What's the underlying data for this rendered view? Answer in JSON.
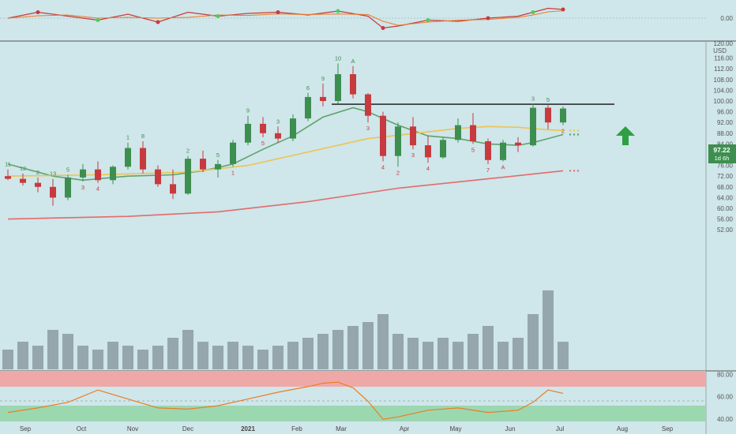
{
  "colors": {
    "background": "#cfe6ea",
    "up": "#3d8f50",
    "down": "#c73a3e",
    "ma_short": "#5fa36b",
    "ma_mid": "#ecc452",
    "ma_long": "#e36b6b",
    "volume": "#8f9ea6",
    "rsi_line": "#ee7c23",
    "upper_band": "#efa8a8",
    "lower_band": "#9bd8b0",
    "resistance": "#111111",
    "arrow": "#2ea043",
    "price_tag": "#3d8f50"
  },
  "main_axis": {
    "unit": "USD",
    "top_label": "120.00",
    "ticks": [
      "116.00",
      "112.00",
      "108.00",
      "104.00",
      "100.00",
      "96.00",
      "92.00",
      "88.00",
      "84.00",
      "80.00",
      "76.00",
      "72.00",
      "68.00",
      "64.00",
      "60.00",
      "56.00",
      "52.00"
    ]
  },
  "price_tag": {
    "price": "97.22",
    "countdown": "1d 6h"
  },
  "top_panel": {
    "tick": "0.00"
  },
  "rsi_panel": {
    "ticks": [
      "80.00",
      "60.00",
      "40.00"
    ]
  },
  "x_axis": {
    "labels": [
      "Sep",
      "Oct",
      "Nov",
      "Dec",
      "2021",
      "Feb",
      "Mar",
      "Apr",
      "May",
      "Jun",
      "Jul",
      "Aug",
      "Sep"
    ]
  },
  "chart_data": {
    "type": "candlestick",
    "y_range": [
      50,
      120
    ],
    "resistance_level": 98.8,
    "weekly_candles": [
      {
        "o": 72.0,
        "h": 74.5,
        "l": 70.5,
        "c": 71.0
      },
      {
        "o": 71.0,
        "h": 73.0,
        "l": 68.5,
        "c": 69.5
      },
      {
        "o": 69.5,
        "h": 71.5,
        "l": 66.0,
        "c": 68.0
      },
      {
        "o": 68.0,
        "h": 71.0,
        "l": 61.0,
        "c": 64.0
      },
      {
        "o": 64.0,
        "h": 72.5,
        "l": 63.0,
        "c": 71.5
      },
      {
        "o": 71.5,
        "h": 76.5,
        "l": 70.0,
        "c": 74.5
      },
      {
        "o": 74.5,
        "h": 77.5,
        "l": 69.5,
        "c": 70.5
      },
      {
        "o": 70.5,
        "h": 76.0,
        "l": 69.0,
        "c": 75.5
      },
      {
        "o": 75.5,
        "h": 84.5,
        "l": 74.5,
        "c": 82.5
      },
      {
        "o": 82.5,
        "h": 85.0,
        "l": 73.0,
        "c": 74.5
      },
      {
        "o": 74.5,
        "h": 76.0,
        "l": 68.0,
        "c": 69.0
      },
      {
        "o": 69.0,
        "h": 74.5,
        "l": 63.5,
        "c": 65.5
      },
      {
        "o": 65.5,
        "h": 79.5,
        "l": 65.0,
        "c": 78.5
      },
      {
        "o": 78.5,
        "h": 81.5,
        "l": 73.5,
        "c": 74.5
      },
      {
        "o": 74.5,
        "h": 78.0,
        "l": 71.5,
        "c": 76.5
      },
      {
        "o": 76.5,
        "h": 85.5,
        "l": 75.5,
        "c": 84.5
      },
      {
        "o": 84.5,
        "h": 94.5,
        "l": 83.5,
        "c": 91.5
      },
      {
        "o": 91.5,
        "h": 94.0,
        "l": 86.5,
        "c": 88.0
      },
      {
        "o": 88.0,
        "h": 90.5,
        "l": 84.5,
        "c": 86.0
      },
      {
        "o": 86.0,
        "h": 95.0,
        "l": 85.0,
        "c": 93.5
      },
      {
        "o": 93.5,
        "h": 103.0,
        "l": 92.5,
        "c": 101.5
      },
      {
        "o": 101.5,
        "h": 106.5,
        "l": 98.0,
        "c": 100.0
      },
      {
        "o": 100.0,
        "h": 114.0,
        "l": 99.0,
        "c": 110.0
      },
      {
        "o": 110.0,
        "h": 113.0,
        "l": 101.0,
        "c": 102.5
      },
      {
        "o": 102.5,
        "h": 103.0,
        "l": 92.0,
        "c": 94.5
      },
      {
        "o": 94.5,
        "h": 96.0,
        "l": 77.5,
        "c": 79.5
      },
      {
        "o": 79.5,
        "h": 92.0,
        "l": 75.5,
        "c": 90.5
      },
      {
        "o": 90.5,
        "h": 94.0,
        "l": 82.0,
        "c": 83.5
      },
      {
        "o": 83.5,
        "h": 87.0,
        "l": 77.0,
        "c": 79.0
      },
      {
        "o": 79.0,
        "h": 86.5,
        "l": 78.5,
        "c": 85.5
      },
      {
        "o": 85.5,
        "h": 93.5,
        "l": 84.5,
        "c": 91.0
      },
      {
        "o": 91.0,
        "h": 95.5,
        "l": 84.0,
        "c": 85.0
      },
      {
        "o": 85.0,
        "h": 86.0,
        "l": 76.5,
        "c": 78.0
      },
      {
        "o": 78.0,
        "h": 85.5,
        "l": 77.5,
        "c": 84.5
      },
      {
        "o": 84.5,
        "h": 86.5,
        "l": 81.0,
        "c": 83.5
      },
      {
        "o": 83.5,
        "h": 99.0,
        "l": 83.0,
        "c": 97.5
      },
      {
        "o": 97.5,
        "h": 98.5,
        "l": 89.5,
        "c": 92.0
      },
      {
        "o": 92.0,
        "h": 98.0,
        "l": 91.0,
        "c": 97.2
      }
    ],
    "moving_averages": [
      {
        "name": "short",
        "color": "#5fa36b",
        "points": [
          [
            0,
            76.5
          ],
          [
            3,
            72
          ],
          [
            5,
            70.5
          ],
          [
            8,
            72
          ],
          [
            11,
            72.5
          ],
          [
            13,
            74
          ],
          [
            15,
            76.5
          ],
          [
            17,
            82
          ],
          [
            19,
            87
          ],
          [
            21,
            94
          ],
          [
            23,
            97.5
          ],
          [
            24,
            96
          ],
          [
            26,
            91
          ],
          [
            28,
            87
          ],
          [
            30,
            86
          ],
          [
            32,
            84
          ],
          [
            34,
            83.5
          ],
          [
            35,
            84.5
          ],
          [
            36,
            86
          ],
          [
            37,
            87.5
          ]
        ]
      },
      {
        "name": "mid",
        "color": "#ecc452",
        "points": [
          [
            0,
            72
          ],
          [
            6,
            72.5
          ],
          [
            12,
            73.5
          ],
          [
            16,
            76
          ],
          [
            20,
            81
          ],
          [
            24,
            86
          ],
          [
            28,
            88.5
          ],
          [
            30,
            89.8
          ],
          [
            32,
            90.5
          ],
          [
            34,
            90.2
          ],
          [
            36,
            89.3
          ],
          [
            37,
            89
          ]
        ]
      },
      {
        "name": "long",
        "color": "#e36b6b",
        "points": [
          [
            0,
            56
          ],
          [
            8,
            57
          ],
          [
            14,
            58.7
          ],
          [
            20,
            62.5
          ],
          [
            26,
            67.5
          ],
          [
            32,
            71
          ],
          [
            37,
            74
          ]
        ]
      }
    ],
    "volume_relative": [
      0.25,
      0.35,
      0.3,
      0.5,
      0.45,
      0.3,
      0.25,
      0.35,
      0.3,
      0.25,
      0.3,
      0.4,
      0.5,
      0.35,
      0.3,
      0.35,
      0.3,
      0.25,
      0.3,
      0.35,
      0.4,
      0.45,
      0.5,
      0.55,
      0.6,
      0.7,
      0.45,
      0.4,
      0.35,
      0.4,
      0.35,
      0.45,
      0.55,
      0.35,
      0.4,
      0.7,
      1.0,
      0.35
    ],
    "rsi_levels": [
      80,
      60,
      40
    ],
    "rsi_points": [
      [
        0,
        46
      ],
      [
        2,
        50
      ],
      [
        4,
        55
      ],
      [
        6,
        66
      ],
      [
        8,
        58
      ],
      [
        10,
        50
      ],
      [
        12,
        49
      ],
      [
        14,
        52
      ],
      [
        16,
        58
      ],
      [
        18,
        64
      ],
      [
        20,
        69
      ],
      [
        21,
        72
      ],
      [
        22,
        73
      ],
      [
        23,
        68
      ],
      [
        24,
        56
      ],
      [
        25,
        40
      ],
      [
        26,
        42
      ],
      [
        28,
        48
      ],
      [
        30,
        50
      ],
      [
        32,
        46
      ],
      [
        34,
        48
      ],
      [
        35,
        55
      ],
      [
        36,
        66
      ],
      [
        37,
        63
      ]
    ],
    "oscillator_points": [
      [
        0,
        0
      ],
      [
        2,
        1.5
      ],
      [
        4,
        0.5
      ],
      [
        6,
        -0.5
      ],
      [
        8,
        1
      ],
      [
        10,
        -1
      ],
      [
        12,
        1.5
      ],
      [
        14,
        0.5
      ],
      [
        16,
        1.2
      ],
      [
        18,
        1.5
      ],
      [
        20,
        0.8
      ],
      [
        22,
        1.8
      ],
      [
        24,
        0.5
      ],
      [
        25,
        -2.5
      ],
      [
        26,
        -2
      ],
      [
        28,
        -0.5
      ],
      [
        30,
        -0.8
      ],
      [
        32,
        0
      ],
      [
        34,
        0.5
      ],
      [
        35,
        1.5
      ],
      [
        36,
        2.5
      ],
      [
        37,
        2.2
      ]
    ],
    "count_labels": [
      {
        "i": 0,
        "t": "11",
        "c": "g"
      },
      {
        "i": 1,
        "t": "12",
        "c": "g"
      },
      {
        "i": 2,
        "t": "2",
        "c": "g"
      },
      {
        "i": 3,
        "t": "13",
        "c": "g"
      },
      {
        "i": 4,
        "t": "5",
        "c": "g"
      },
      {
        "i": 5,
        "t": "3",
        "c": "r"
      },
      {
        "i": 6,
        "t": "4",
        "c": "r"
      },
      {
        "i": 8,
        "t": "1",
        "c": "g"
      },
      {
        "i": 9,
        "t": "8",
        "c": "g"
      },
      {
        "i": 12,
        "t": "2",
        "c": "g"
      },
      {
        "i": 14,
        "t": "5",
        "c": "g"
      },
      {
        "i": 15,
        "t": "1",
        "c": "r"
      },
      {
        "i": 16,
        "t": "9",
        "c": "g"
      },
      {
        "i": 17,
        "t": "5",
        "c": "r"
      },
      {
        "i": 18,
        "t": "3",
        "c": "g"
      },
      {
        "i": 20,
        "t": "6",
        "c": "g"
      },
      {
        "i": 21,
        "t": "9",
        "c": "g"
      },
      {
        "i": 22,
        "t": "10",
        "c": "g"
      },
      {
        "i": 23,
        "t": "A",
        "c": "g"
      },
      {
        "i": 24,
        "t": "3",
        "c": "r"
      },
      {
        "i": 25,
        "t": "4",
        "c": "r"
      },
      {
        "i": 26,
        "t": "2",
        "c": "r"
      },
      {
        "i": 27,
        "t": "3",
        "c": "r"
      },
      {
        "i": 28,
        "t": "4",
        "c": "r"
      },
      {
        "i": 31,
        "t": "5",
        "c": "r"
      },
      {
        "i": 32,
        "t": "7",
        "c": "r"
      },
      {
        "i": 33,
        "t": "A",
        "c": "r"
      },
      {
        "i": 35,
        "t": "3",
        "c": "g"
      },
      {
        "i": 36,
        "t": "5",
        "c": "g"
      },
      {
        "i": 37,
        "t": "2",
        "c": "r"
      }
    ]
  }
}
